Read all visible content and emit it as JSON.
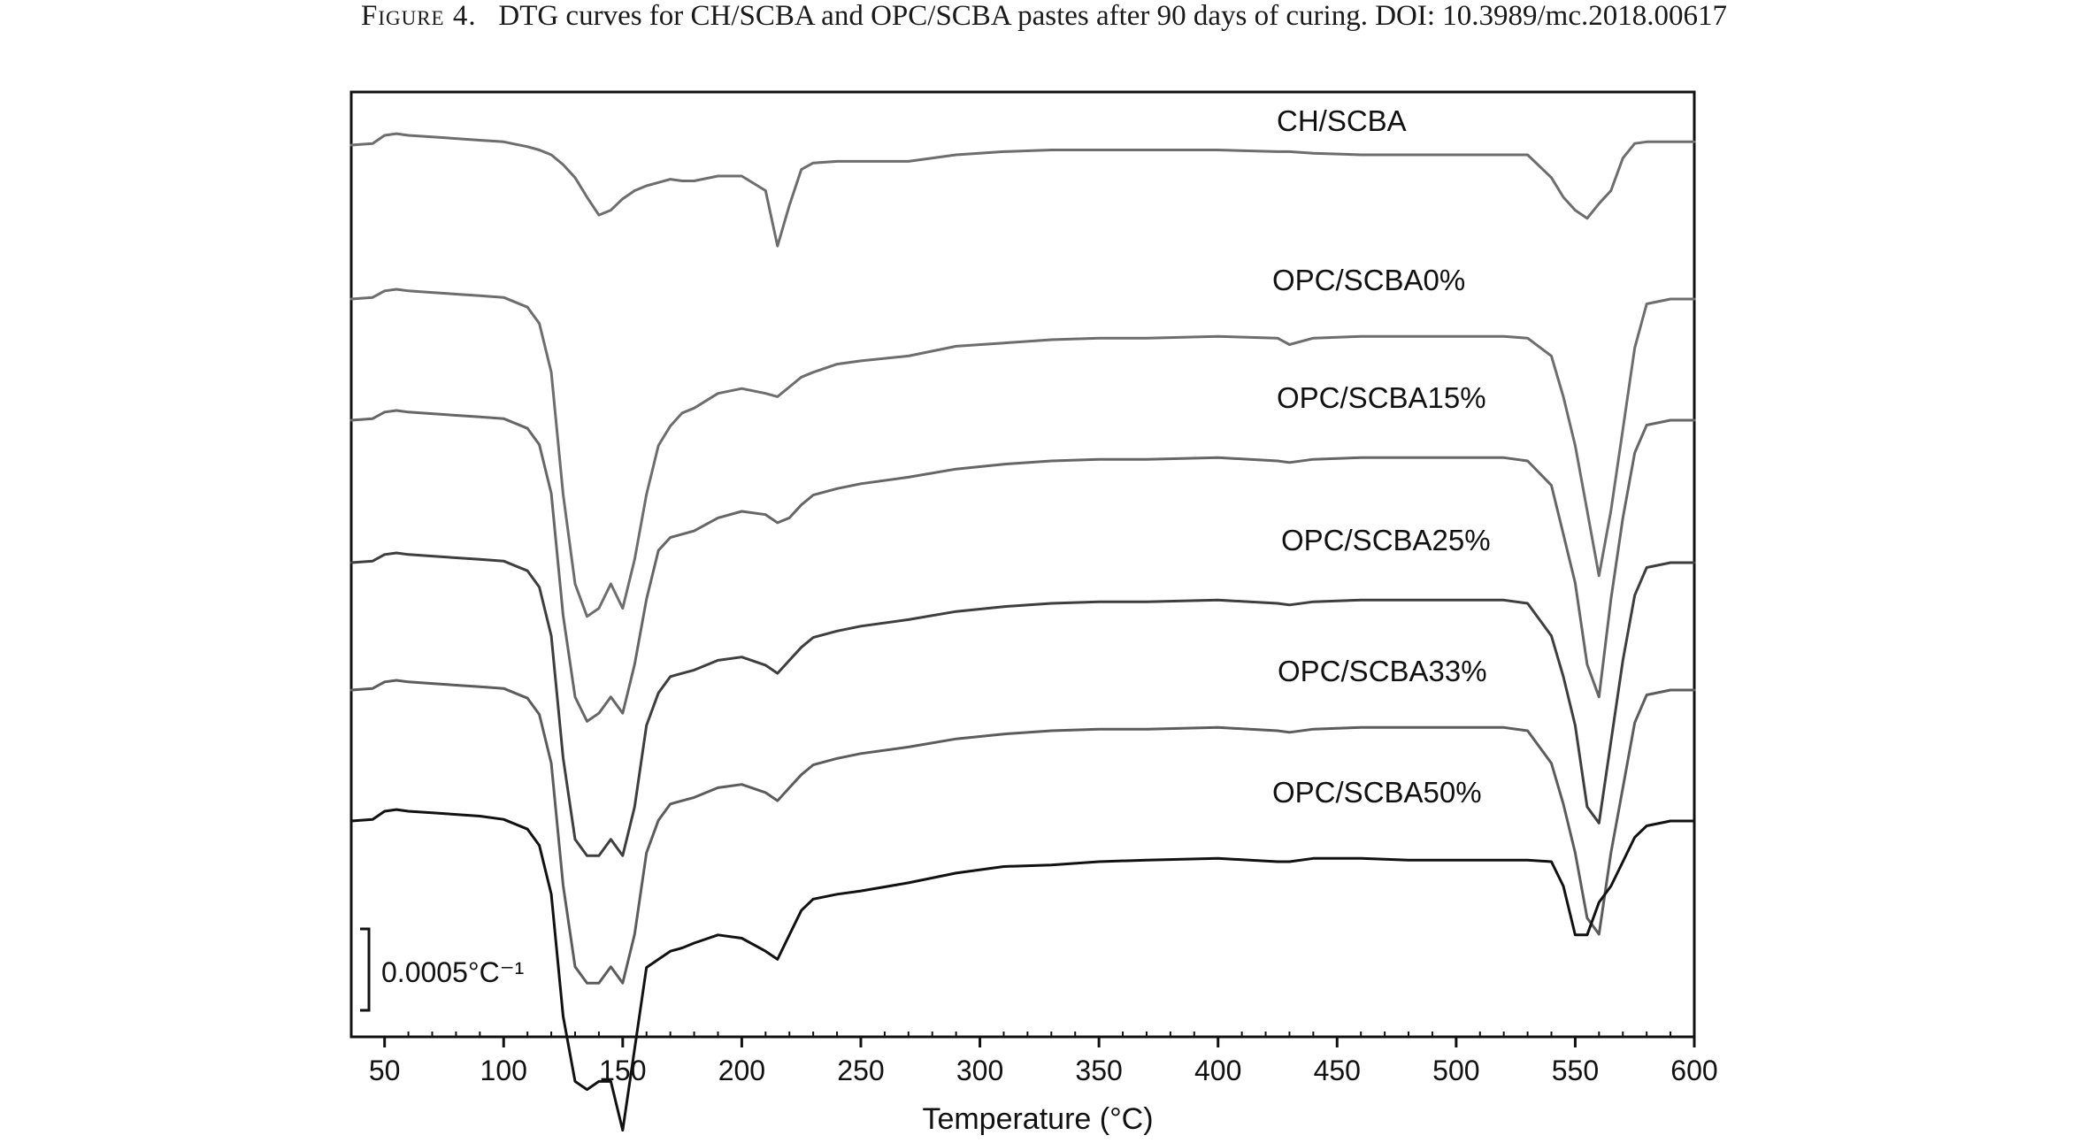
{
  "caption": {
    "label": "Figure 4.",
    "text": "DTG curves for CH/SCBA and OPC/SCBA pastes after 90 days of curing. DOI: 10.3989/mc.2018.00617"
  },
  "chart_data": {
    "type": "line",
    "xlabel": "Temperature (°C)",
    "ylabel": "",
    "xlim": [
      36,
      600
    ],
    "x_ticks": [
      50,
      100,
      150,
      200,
      250,
      300,
      350,
      400,
      450,
      500,
      550,
      600
    ],
    "grid": false,
    "y_scale_bar": {
      "label": "0.0005°C⁻¹",
      "value": 0.0005
    },
    "stacking": "curves vertically offset for clarity; shown as relative DTG (°C⁻¹), 0 = baseline at 36 °C, negative = mass-loss peak",
    "x": [
      36,
      45,
      50,
      55,
      60,
      70,
      80,
      90,
      100,
      110,
      115,
      120,
      125,
      130,
      135,
      140,
      145,
      150,
      155,
      160,
      165,
      170,
      175,
      180,
      190,
      200,
      210,
      215,
      220,
      225,
      230,
      240,
      250,
      270,
      290,
      310,
      330,
      350,
      370,
      400,
      425,
      430,
      440,
      460,
      480,
      500,
      520,
      530,
      540,
      545,
      550,
      555,
      560,
      565,
      570,
      575,
      580,
      590,
      600
    ],
    "series": [
      {
        "name": "CH/SCBA",
        "color": "#6d6d6d",
        "values": [
          0,
          1e-05,
          6e-05,
          7e-05,
          6e-05,
          5e-05,
          4e-05,
          3e-05,
          2e-05,
          -1e-05,
          -3e-05,
          -6e-05,
          -0.00012,
          -0.0002,
          -0.00032,
          -0.00043,
          -0.0004,
          -0.00033,
          -0.00028,
          -0.00025,
          -0.00023,
          -0.00021,
          -0.00022,
          -0.00022,
          -0.00019,
          -0.00019,
          -0.00028,
          -0.00062,
          -0.00037,
          -0.00015,
          -0.00011,
          -0.0001,
          -0.0001,
          -0.0001,
          -6e-05,
          -4e-05,
          -3e-05,
          -3e-05,
          -3e-05,
          -3e-05,
          -4e-05,
          -4e-05,
          -5e-05,
          -6e-05,
          -6e-05,
          -6e-05,
          -6e-05,
          -6e-05,
          -0.0002,
          -0.00032,
          -0.0004,
          -0.00045,
          -0.00036,
          -0.00028,
          -8e-05,
          1e-05,
          2e-05,
          2e-05,
          2e-05
        ]
      },
      {
        "name": "OPC/SCBA0%",
        "color": "#6d6d6d",
        "values": [
          0,
          1e-05,
          5e-05,
          6e-05,
          5e-05,
          4e-05,
          3e-05,
          2e-05,
          1e-05,
          -5e-05,
          -0.00015,
          -0.00045,
          -0.0012,
          -0.00175,
          -0.00195,
          -0.0019,
          -0.00175,
          -0.0019,
          -0.0016,
          -0.0012,
          -0.0009,
          -0.00078,
          -0.0007,
          -0.00067,
          -0.00058,
          -0.00055,
          -0.00058,
          -0.0006,
          -0.00054,
          -0.00048,
          -0.00045,
          -0.0004,
          -0.00038,
          -0.00035,
          -0.00029,
          -0.00027,
          -0.00025,
          -0.00024,
          -0.00024,
          -0.00023,
          -0.00024,
          -0.00028,
          -0.00024,
          -0.00023,
          -0.00023,
          -0.00023,
          -0.00023,
          -0.00024,
          -0.00035,
          -0.0006,
          -0.0009,
          -0.0013,
          -0.0017,
          -0.0013,
          -0.0008,
          -0.0003,
          -3e-05,
          0,
          0
        ]
      },
      {
        "name": "OPC/SCBA15%",
        "color": "#666666",
        "values": [
          0,
          1e-05,
          5e-05,
          6e-05,
          5e-05,
          4e-05,
          3e-05,
          2e-05,
          1e-05,
          -5e-05,
          -0.00015,
          -0.00045,
          -0.0012,
          -0.0017,
          -0.00185,
          -0.0018,
          -0.0017,
          -0.0018,
          -0.0015,
          -0.0011,
          -0.0008,
          -0.00072,
          -0.0007,
          -0.00068,
          -0.0006,
          -0.00056,
          -0.00058,
          -0.00063,
          -0.0006,
          -0.00052,
          -0.00046,
          -0.00042,
          -0.00039,
          -0.00035,
          -0.0003,
          -0.00027,
          -0.00025,
          -0.00024,
          -0.00024,
          -0.00023,
          -0.00025,
          -0.00026,
          -0.00024,
          -0.00023,
          -0.00023,
          -0.00023,
          -0.00023,
          -0.00025,
          -0.0004,
          -0.0007,
          -0.001,
          -0.0015,
          -0.0017,
          -0.0011,
          -0.0006,
          -0.0002,
          -3e-05,
          0,
          0
        ]
      },
      {
        "name": "OPC/SCBA25%",
        "color": "#3e3e3e",
        "values": [
          0,
          1e-05,
          5e-05,
          6e-05,
          5e-05,
          4e-05,
          3e-05,
          2e-05,
          1e-05,
          -5e-05,
          -0.00015,
          -0.00045,
          -0.0012,
          -0.0017,
          -0.0018,
          -0.0018,
          -0.0017,
          -0.0018,
          -0.0015,
          -0.001,
          -0.0008,
          -0.0007,
          -0.00068,
          -0.00066,
          -0.0006,
          -0.00058,
          -0.00063,
          -0.00068,
          -0.0006,
          -0.00052,
          -0.00046,
          -0.00042,
          -0.00039,
          -0.00035,
          -0.0003,
          -0.00027,
          -0.00025,
          -0.00024,
          -0.00024,
          -0.00023,
          -0.00025,
          -0.00026,
          -0.00024,
          -0.00023,
          -0.00023,
          -0.00023,
          -0.00023,
          -0.00025,
          -0.00045,
          -0.0007,
          -0.001,
          -0.0015,
          -0.0016,
          -0.0011,
          -0.0006,
          -0.0002,
          -3e-05,
          0,
          0
        ]
      },
      {
        "name": "OPC/SCBA33%",
        "color": "#5c5c5c",
        "values": [
          0,
          1e-05,
          5e-05,
          6e-05,
          5e-05,
          4e-05,
          3e-05,
          2e-05,
          1e-05,
          -5e-05,
          -0.00015,
          -0.00045,
          -0.0012,
          -0.0017,
          -0.0018,
          -0.0018,
          -0.0017,
          -0.0018,
          -0.0015,
          -0.001,
          -0.0008,
          -0.0007,
          -0.00068,
          -0.00066,
          -0.0006,
          -0.00058,
          -0.00063,
          -0.00068,
          -0.0006,
          -0.00052,
          -0.00046,
          -0.00042,
          -0.00039,
          -0.00035,
          -0.0003,
          -0.00027,
          -0.00025,
          -0.00024,
          -0.00024,
          -0.00023,
          -0.00025,
          -0.00026,
          -0.00024,
          -0.00023,
          -0.00023,
          -0.00023,
          -0.00023,
          -0.00025,
          -0.00045,
          -0.0007,
          -0.001,
          -0.0014,
          -0.0015,
          -0.001,
          -0.0006,
          -0.0002,
          -3e-05,
          0,
          0
        ]
      },
      {
        "name": "OPC/SCBA50%",
        "color": "#111111",
        "values": [
          0,
          1e-05,
          6e-05,
          7e-05,
          6e-05,
          5e-05,
          4e-05,
          3e-05,
          1e-05,
          -5e-05,
          -0.00015,
          -0.00045,
          -0.0012,
          -0.0016,
          -0.00165,
          -0.0016,
          -0.0016,
          -0.0019,
          -0.0014,
          -0.0009,
          -0.00085,
          -0.0008,
          -0.00078,
          -0.00075,
          -0.0007,
          -0.00072,
          -0.0008,
          -0.00085,
          -0.0007,
          -0.00055,
          -0.00048,
          -0.00045,
          -0.00043,
          -0.00038,
          -0.00032,
          -0.00028,
          -0.00027,
          -0.00025,
          -0.00024,
          -0.00023,
          -0.00025,
          -0.00025,
          -0.00023,
          -0.00023,
          -0.00024,
          -0.00024,
          -0.00024,
          -0.00024,
          -0.00025,
          -0.0004,
          -0.0007,
          -0.0007,
          -0.0005,
          -0.0004,
          -0.00025,
          -0.0001,
          -3e-05,
          0,
          0
        ]
      }
    ]
  }
}
